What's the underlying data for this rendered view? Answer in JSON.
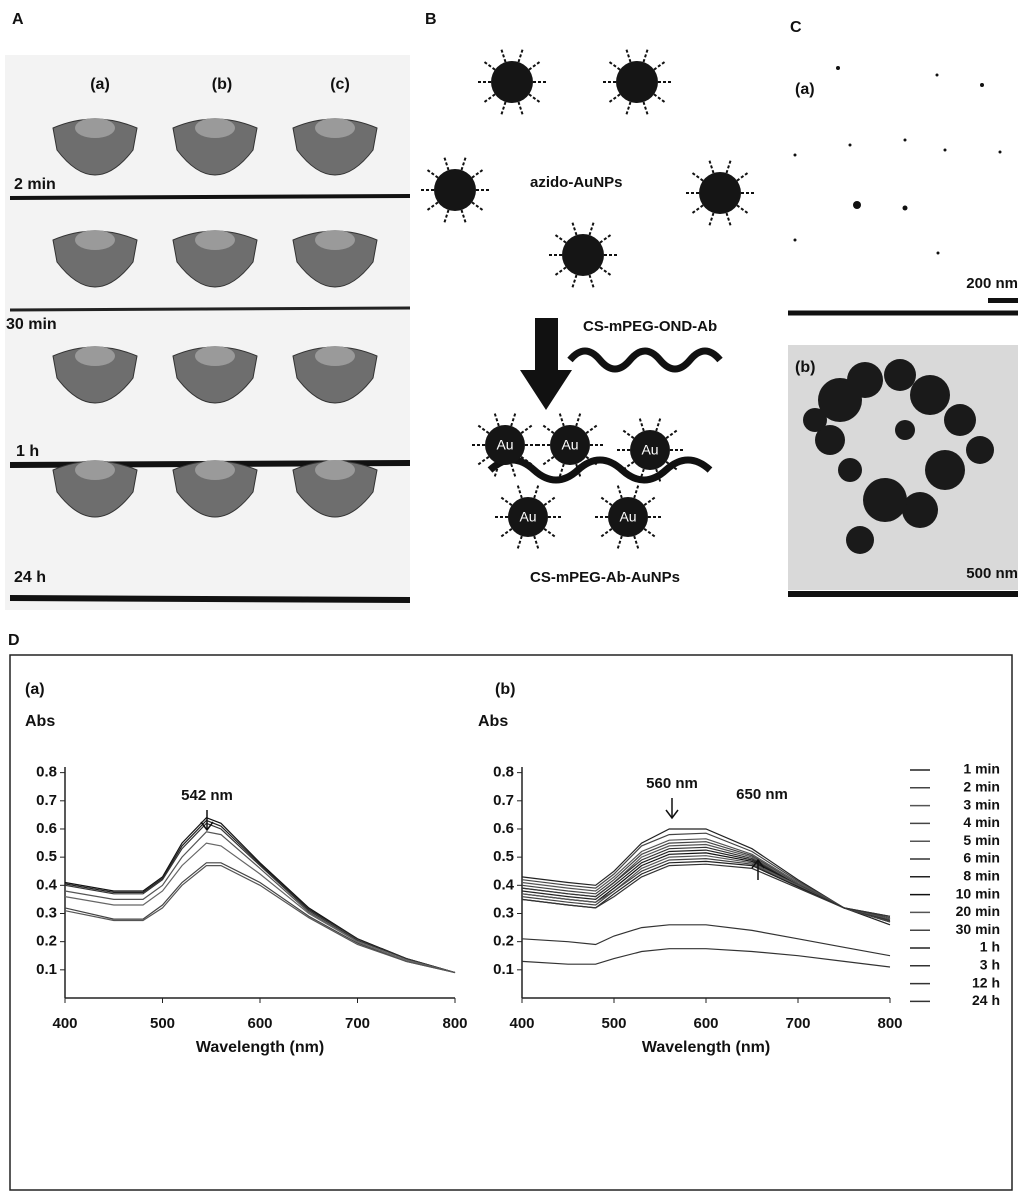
{
  "panels": {
    "A": {
      "label": "A",
      "columns": [
        "(a)",
        "(b)",
        "(c)"
      ],
      "rows": [
        "2 min",
        "30 min",
        "1 h",
        "24 h"
      ]
    },
    "B": {
      "label": "B",
      "particles": "azido-AuNPs",
      "polymer": "CS-mPEG-OND-Ab",
      "au": [
        "Au",
        "Au",
        "Au",
        "Au",
        "Au"
      ],
      "product": "CS-mPEG-Ab-AuNPs"
    },
    "C": {
      "label": "C",
      "sub": [
        {
          "label": "(a)",
          "scale": "200 nm"
        },
        {
          "label": "(b)",
          "scale": "500 nm"
        }
      ]
    },
    "D": {
      "label": "D"
    }
  },
  "chart_data": [
    {
      "type": "line",
      "title": "(a)",
      "ylabel": "Abs",
      "xlabel": "Wavelength (nm)",
      "annotations": [
        "542 nm"
      ],
      "xlim": [
        400,
        800
      ],
      "ylim": [
        0,
        0.82
      ],
      "xticks": [
        400,
        500,
        600,
        700,
        800
      ],
      "yticks": [
        0.1,
        0.2,
        0.3,
        0.4,
        0.5,
        0.6,
        0.7,
        0.8
      ],
      "x": [
        400,
        450,
        480,
        500,
        520,
        545,
        560,
        600,
        650,
        700,
        750,
        800
      ],
      "series": [
        {
          "color": "#111111",
          "values": [
            0.41,
            0.38,
            0.38,
            0.43,
            0.55,
            0.64,
            0.62,
            0.48,
            0.32,
            0.21,
            0.14,
            0.09
          ]
        },
        {
          "color": "#222222",
          "values": [
            0.405,
            0.375,
            0.375,
            0.425,
            0.54,
            0.63,
            0.61,
            0.475,
            0.315,
            0.21,
            0.14,
            0.09
          ]
        },
        {
          "color": "#333333",
          "values": [
            0.4,
            0.37,
            0.37,
            0.42,
            0.53,
            0.62,
            0.6,
            0.47,
            0.31,
            0.205,
            0.14,
            0.09
          ]
        },
        {
          "color": "#555555",
          "values": [
            0.38,
            0.35,
            0.35,
            0.4,
            0.5,
            0.59,
            0.58,
            0.46,
            0.305,
            0.2,
            0.135,
            0.09
          ]
        },
        {
          "color": "#666666",
          "values": [
            0.36,
            0.33,
            0.33,
            0.38,
            0.47,
            0.55,
            0.54,
            0.44,
            0.3,
            0.2,
            0.135,
            0.09
          ]
        },
        {
          "color": "#444444",
          "values": [
            0.32,
            0.28,
            0.28,
            0.33,
            0.41,
            0.48,
            0.48,
            0.41,
            0.29,
            0.195,
            0.13,
            0.09
          ]
        },
        {
          "color": "#555555",
          "values": [
            0.31,
            0.275,
            0.275,
            0.32,
            0.4,
            0.47,
            0.47,
            0.4,
            0.285,
            0.19,
            0.13,
            0.09
          ]
        }
      ]
    },
    {
      "type": "line",
      "title": "(b)",
      "ylabel": "Abs",
      "xlabel": "Wavelength (nm)",
      "annotations": [
        "560 nm",
        "650 nm"
      ],
      "xlim": [
        400,
        800
      ],
      "ylim": [
        0,
        0.82
      ],
      "xticks": [
        400,
        500,
        600,
        700,
        800
      ],
      "yticks": [
        0.1,
        0.2,
        0.3,
        0.4,
        0.5,
        0.6,
        0.7,
        0.8
      ],
      "x": [
        400,
        450,
        480,
        500,
        530,
        560,
        600,
        650,
        700,
        750,
        800
      ],
      "series": [
        {
          "name": "1 min",
          "color": "#222222",
          "values": [
            0.43,
            0.41,
            0.4,
            0.45,
            0.55,
            0.6,
            0.6,
            0.53,
            0.42,
            0.32,
            0.26
          ]
        },
        {
          "name": "2 min",
          "color": "#444444",
          "values": [
            0.42,
            0.4,
            0.39,
            0.44,
            0.54,
            0.58,
            0.585,
            0.52,
            0.415,
            0.32,
            0.27
          ]
        },
        {
          "name": "3 min",
          "color": "#555555",
          "values": [
            0.41,
            0.39,
            0.38,
            0.43,
            0.52,
            0.56,
            0.565,
            0.51,
            0.41,
            0.32,
            0.27
          ]
        },
        {
          "name": "4 min",
          "color": "#444444",
          "values": [
            0.4,
            0.38,
            0.37,
            0.42,
            0.51,
            0.55,
            0.555,
            0.505,
            0.405,
            0.32,
            0.27
          ]
        },
        {
          "name": "5 min",
          "color": "#555555",
          "values": [
            0.39,
            0.37,
            0.36,
            0.41,
            0.5,
            0.54,
            0.545,
            0.5,
            0.4,
            0.32,
            0.275
          ]
        },
        {
          "name": "6 min",
          "color": "#333333",
          "values": [
            0.39,
            0.37,
            0.36,
            0.41,
            0.49,
            0.53,
            0.535,
            0.495,
            0.4,
            0.32,
            0.275
          ]
        },
        {
          "name": "8 min",
          "color": "#222222",
          "values": [
            0.38,
            0.36,
            0.35,
            0.4,
            0.48,
            0.52,
            0.525,
            0.49,
            0.4,
            0.32,
            0.28
          ]
        },
        {
          "name": "10 min",
          "color": "#111111",
          "values": [
            0.37,
            0.35,
            0.34,
            0.39,
            0.47,
            0.51,
            0.515,
            0.485,
            0.4,
            0.32,
            0.28
          ]
        },
        {
          "name": "20 min",
          "color": "#555555",
          "values": [
            0.37,
            0.35,
            0.34,
            0.38,
            0.46,
            0.5,
            0.505,
            0.48,
            0.4,
            0.32,
            0.28
          ]
        },
        {
          "name": "30 min",
          "color": "#444444",
          "values": [
            0.36,
            0.34,
            0.33,
            0.38,
            0.45,
            0.49,
            0.495,
            0.475,
            0.395,
            0.32,
            0.285
          ]
        },
        {
          "name": "1 h",
          "color": "#222222",
          "values": [
            0.35,
            0.33,
            0.32,
            0.37,
            0.44,
            0.48,
            0.485,
            0.47,
            0.395,
            0.32,
            0.29
          ]
        },
        {
          "name": "3 h",
          "color": "#333333",
          "values": [
            0.35,
            0.33,
            0.32,
            0.36,
            0.43,
            0.47,
            0.475,
            0.46,
            0.39,
            0.32,
            0.29
          ]
        },
        {
          "name": "12 h",
          "color": "#333333",
          "values": [
            0.21,
            0.2,
            0.19,
            0.22,
            0.25,
            0.26,
            0.26,
            0.24,
            0.21,
            0.18,
            0.15
          ]
        },
        {
          "name": "24 h",
          "color": "#333333",
          "values": [
            0.13,
            0.12,
            0.12,
            0.14,
            0.165,
            0.175,
            0.175,
            0.165,
            0.15,
            0.13,
            0.11
          ]
        }
      ]
    }
  ]
}
